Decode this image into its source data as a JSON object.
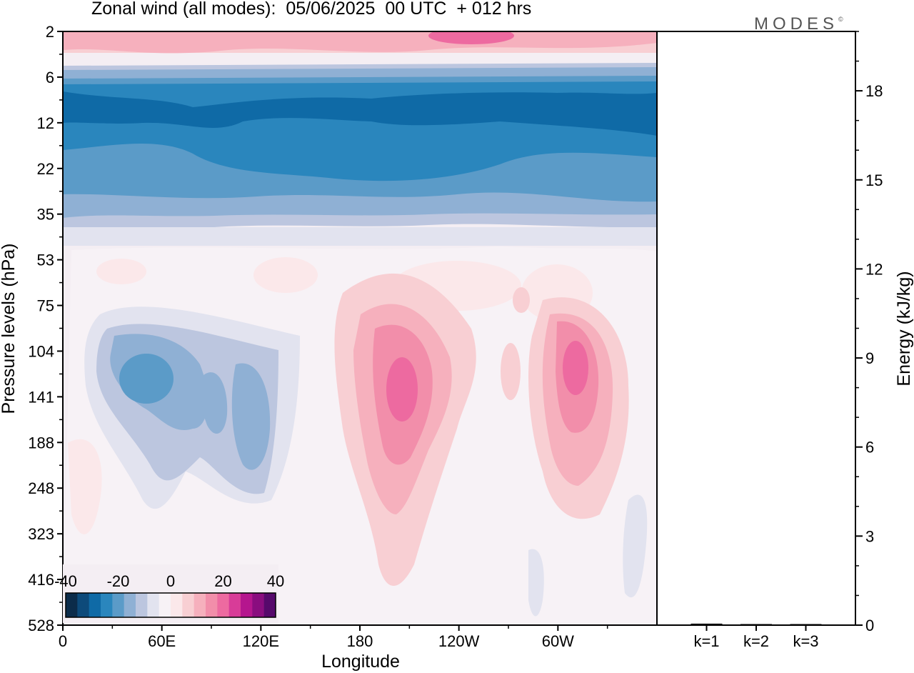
{
  "header": {
    "title": "Zonal wind (all modes):  05/06/2025  00 UTC  + 012 hrs",
    "brand": "MODES",
    "brand_mark": "©"
  },
  "colors": {
    "scale": [
      "#0c2c4a",
      "#0d4a7a",
      "#0f6aa6",
      "#2a86bd",
      "#5b9bc8",
      "#8fb0d4",
      "#bcc6df",
      "#e2e3ef",
      "#f7f2f6",
      "#fbe8ea",
      "#f8cfd3",
      "#f6b0bd",
      "#f28eaa",
      "#ed6aa0",
      "#d83c98",
      "#b5168e",
      "#8a0d7f",
      "#56096b"
    ],
    "background": "#f4eef3"
  },
  "chart_data": [
    {
      "type": "heatmap",
      "title": "Zonal wind (all modes):  05/06/2025  00 UTC  + 012 hrs",
      "xlabel": "Longitude",
      "ylabel": "Pressure levels (hPa)",
      "x_ticks": [
        "0",
        "60E",
        "120E",
        "180",
        "120W",
        "60W"
      ],
      "y_ticks": [
        "2",
        "6",
        "12",
        "22",
        "35",
        "53",
        "75",
        "104",
        "141",
        "188",
        "248",
        "323",
        "416",
        "528"
      ],
      "y_scale": "log (pressure levels)",
      "colorbar": {
        "ticks": [
          "-40",
          "-20",
          "0",
          "20",
          "40"
        ],
        "range": [
          -40,
          40
        ],
        "location": "bottom-left"
      },
      "features": [
        {
          "name": "stratospheric easterly band",
          "p_top": 6,
          "p_bottom": 35,
          "lon_range": [
            0,
            360
          ],
          "value": -30
        },
        {
          "name": "upper westerly band",
          "p_top": 2,
          "p_bottom": 5,
          "lon_range": [
            0,
            360
          ],
          "value": 15
        },
        {
          "name": "easterly core",
          "p": 120,
          "lon": 50,
          "value": -25
        },
        {
          "name": "westerly jet",
          "p": 130,
          "lon": 200,
          "value": 28
        },
        {
          "name": "westerly jet",
          "p": 130,
          "lon": 300,
          "value": 27
        }
      ]
    },
    {
      "type": "bar",
      "categories": [
        "k=1",
        "k=2",
        "k=3"
      ],
      "values": [
        0.05,
        0.03,
        0.02
      ],
      "ylabel": "Energy (kJ/kg)",
      "ylim": [
        0,
        20
      ],
      "y_ticks": [
        "0",
        "3",
        "6",
        "9",
        "12",
        "15",
        "18"
      ]
    }
  ]
}
